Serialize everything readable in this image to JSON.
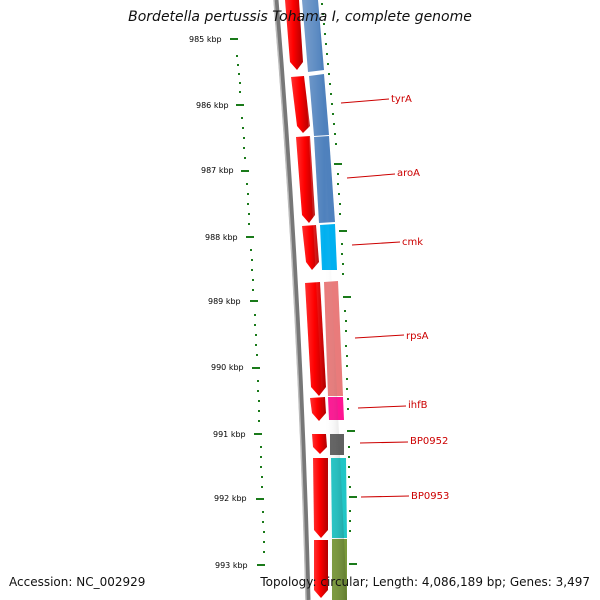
{
  "title": "Bordetella pertussis Tohama I, complete genome",
  "footer": {
    "accession": "Accession: NC_002929",
    "topology": "Topology: circular; Length: 4,086,189 bp; Genes: 3,497"
  },
  "scale": {
    "ticks": [
      "985 kbp",
      "986 kbp",
      "987 kbp",
      "988 kbp",
      "989 kbp",
      "990 kbp",
      "991 kbp",
      "992 kbp",
      "993 kbp"
    ]
  },
  "genes": [
    {
      "name": "",
      "color": "#4f81bd"
    },
    {
      "name": "tyrA",
      "color": "#4f81bd"
    },
    {
      "name": "aroA",
      "color": "#4f81bd"
    },
    {
      "name": "cmk",
      "color": "#00b0f0"
    },
    {
      "name": "rpsA",
      "color": "#e97b7b"
    },
    {
      "name": "ihfB",
      "color": "#ff1493"
    },
    {
      "name": "BP0952",
      "color": "#606060"
    },
    {
      "name": "BP0953",
      "color": "#20c6c6"
    },
    {
      "name": "",
      "color": "#7a9a3a"
    }
  ],
  "colors": {
    "cds_arrow": "#ff0000",
    "backbone": "#777777",
    "gc_dots": "#1a7a1a",
    "label": "#cc0000"
  }
}
